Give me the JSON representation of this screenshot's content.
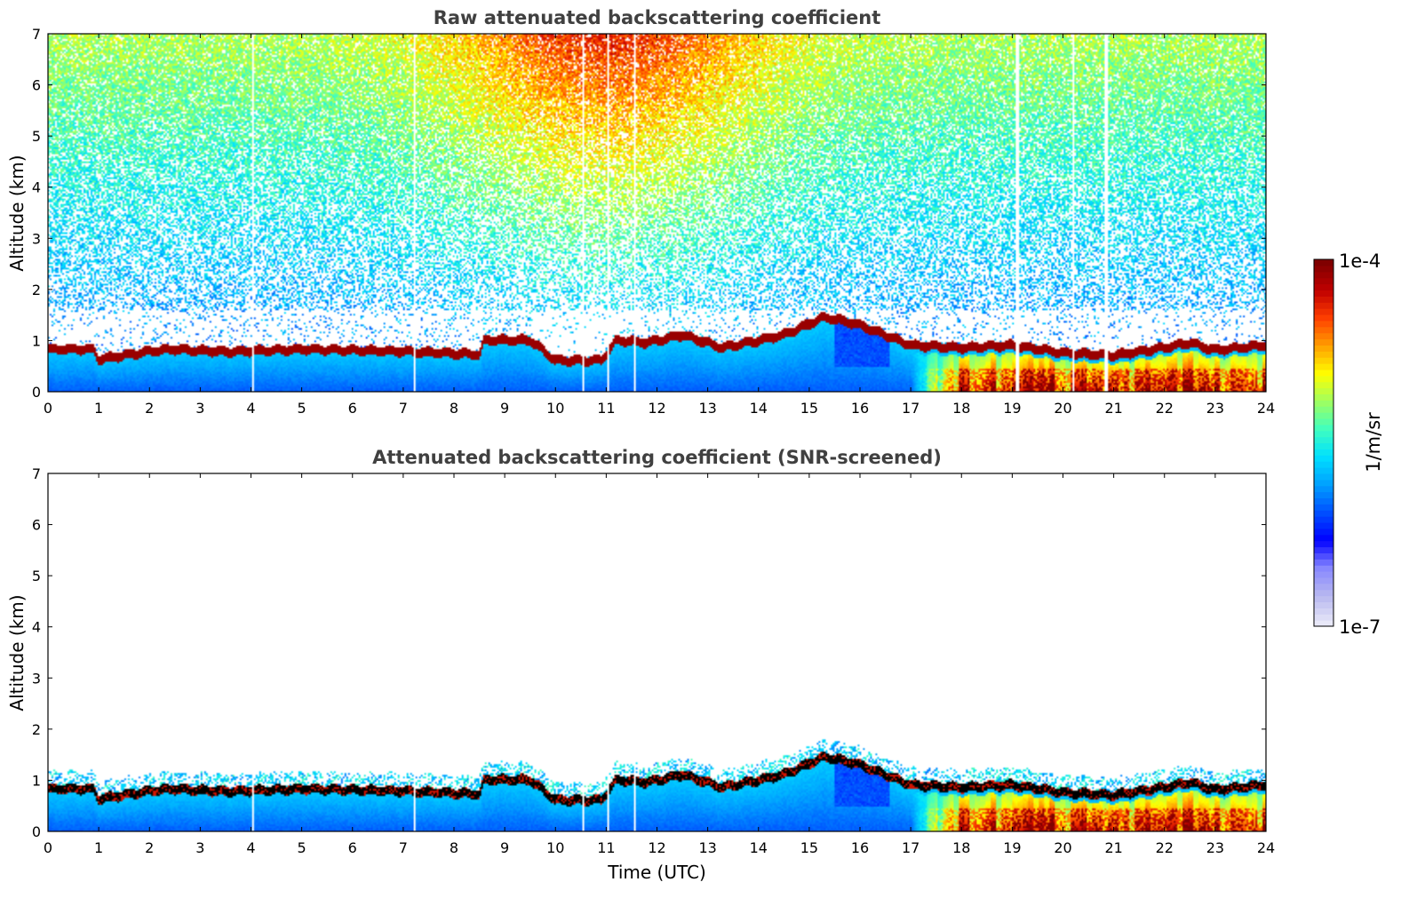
{
  "chart_data": [
    {
      "type": "heatmap",
      "title": "Raw attenuated backscattering coefficient",
      "xlabel": "",
      "ylabel": "Altitude (km)",
      "xlim": [
        0,
        24
      ],
      "ylim": [
        0,
        7
      ],
      "xticks": [
        "0",
        "1",
        "2",
        "3",
        "4",
        "5",
        "6",
        "7",
        "8",
        "9",
        "10",
        "11",
        "12",
        "13",
        "14",
        "15",
        "16",
        "17",
        "18",
        "19",
        "20",
        "21",
        "22",
        "23",
        "24"
      ],
      "yticks": [
        "0",
        "1",
        "2",
        "3",
        "4",
        "5",
        "6",
        "7"
      ],
      "screened": false,
      "gaps_utc": [
        4.05,
        7.22,
        10.55,
        11.05,
        11.55,
        19.1,
        20.2,
        20.85
      ]
    },
    {
      "type": "heatmap",
      "title": "Attenuated backscattering coefficient (SNR-screened)",
      "xlabel": "Time (UTC)",
      "ylabel": "Altitude (km)",
      "xlim": [
        0,
        24
      ],
      "ylim": [
        0,
        7
      ],
      "xticks": [
        "0",
        "1",
        "2",
        "3",
        "4",
        "5",
        "6",
        "7",
        "8",
        "9",
        "10",
        "11",
        "12",
        "13",
        "14",
        "15",
        "16",
        "17",
        "18",
        "19",
        "20",
        "21",
        "22",
        "23",
        "24"
      ],
      "yticks": [
        "0",
        "1",
        "2",
        "3",
        "4",
        "5",
        "6",
        "7"
      ],
      "screened": true,
      "gaps_utc": [
        4.05,
        7.22,
        10.55,
        11.05,
        11.55
      ]
    }
  ],
  "colorbar": {
    "label": "1/m/sr",
    "max_label": "1e-4",
    "min_label": "1e-7",
    "colors": [
      "#e8e8f8",
      "#b8b8f0",
      "#8888ff",
      "#0000ff",
      "#0050ff",
      "#00a0ff",
      "#00e0ff",
      "#40ffc0",
      "#a0ff60",
      "#ffff00",
      "#ffa000",
      "#ff4000",
      "#c00000",
      "#800000"
    ]
  },
  "boundary_layer_top_km": [
    {
      "t": 0,
      "h": 0.82
    },
    {
      "t": 0.9,
      "h": 0.82
    },
    {
      "t": 1.0,
      "h": 0.62
    },
    {
      "t": 2.0,
      "h": 0.78
    },
    {
      "t": 2.5,
      "h": 0.82
    },
    {
      "t": 3.5,
      "h": 0.77
    },
    {
      "t": 5.0,
      "h": 0.82
    },
    {
      "t": 7.0,
      "h": 0.78
    },
    {
      "t": 8.5,
      "h": 0.72
    },
    {
      "t": 8.6,
      "h": 1.0
    },
    {
      "t": 9.5,
      "h": 1.0
    },
    {
      "t": 10.0,
      "h": 0.6
    },
    {
      "t": 10.9,
      "h": 0.6
    },
    {
      "t": 11.2,
      "h": 1.0
    },
    {
      "t": 11.8,
      "h": 0.95
    },
    {
      "t": 12.5,
      "h": 1.1
    },
    {
      "t": 13.3,
      "h": 0.85
    },
    {
      "t": 14.5,
      "h": 1.1
    },
    {
      "t": 15.3,
      "h": 1.45
    },
    {
      "t": 16.0,
      "h": 1.3
    },
    {
      "t": 16.5,
      "h": 1.1
    },
    {
      "t": 17.0,
      "h": 0.9
    },
    {
      "t": 18.0,
      "h": 0.85
    },
    {
      "t": 19.0,
      "h": 0.9
    },
    {
      "t": 20.0,
      "h": 0.75
    },
    {
      "t": 21.0,
      "h": 0.7
    },
    {
      "t": 22.0,
      "h": 0.85
    },
    {
      "t": 22.5,
      "h": 0.95
    },
    {
      "t": 23.0,
      "h": 0.8
    },
    {
      "t": 24.0,
      "h": 0.9
    }
  ]
}
